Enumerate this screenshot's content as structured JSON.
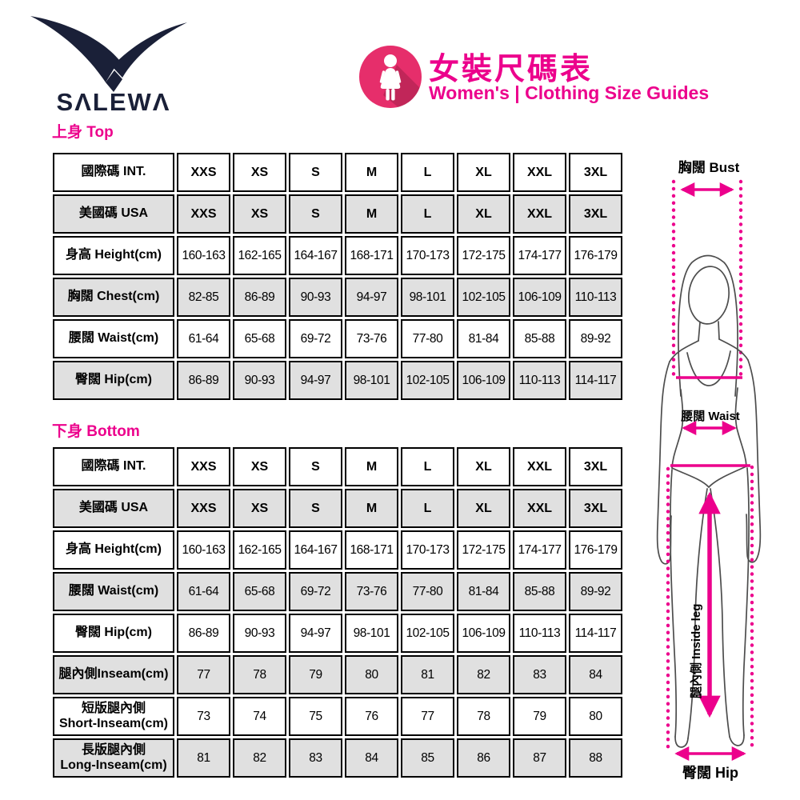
{
  "brand": {
    "name": "SALEWA",
    "logo_display": "SΛLEWΛ"
  },
  "header": {
    "title_zh": "女裝尺碼表",
    "title_en": "Women's | Clothing Size Guides",
    "icon": "woman-icon"
  },
  "colors": {
    "accent_pink": "#EC008C",
    "icon_circle_pink": "#E62E6B",
    "logo_navy": "#1A2038",
    "row_alt_gray": "#E0E0E0",
    "table_border": "#000000",
    "figure_outline": "#4d4d4d"
  },
  "size_columns": [
    "XXS",
    "XS",
    "S",
    "M",
    "L",
    "XL",
    "XXL",
    "3XL"
  ],
  "top_section": {
    "label": "上身 Top",
    "table": {
      "rows": [
        {
          "label": "國際碼 INT.",
          "values": [
            "XXS",
            "XS",
            "S",
            "M",
            "L",
            "XL",
            "XXL",
            "3XL"
          ]
        },
        {
          "label": "美國碼 USA",
          "values": [
            "XXS",
            "XS",
            "S",
            "M",
            "L",
            "XL",
            "XXL",
            "3XL"
          ]
        },
        {
          "label": "身高 Height(cm)",
          "values": [
            "160-163",
            "162-165",
            "164-167",
            "168-171",
            "170-173",
            "172-175",
            "174-177",
            "176-179"
          ]
        },
        {
          "label": "胸闊 Chest(cm)",
          "values": [
            "82-85",
            "86-89",
            "90-93",
            "94-97",
            "98-101",
            "102-105",
            "106-109",
            "110-113"
          ]
        },
        {
          "label": "腰闊 Waist(cm)",
          "values": [
            "61-64",
            "65-68",
            "69-72",
            "73-76",
            "77-80",
            "81-84",
            "85-88",
            "89-92"
          ]
        },
        {
          "label": "臀闊 Hip(cm)",
          "values": [
            "86-89",
            "90-93",
            "94-97",
            "98-101",
            "102-105",
            "106-109",
            "110-113",
            "114-117"
          ]
        }
      ]
    }
  },
  "bottom_section": {
    "label": "下身 Bottom",
    "table": {
      "rows": [
        {
          "label": "國際碼 INT.",
          "values": [
            "XXS",
            "XS",
            "S",
            "M",
            "L",
            "XL",
            "XXL",
            "3XL"
          ]
        },
        {
          "label": "美國碼 USA",
          "values": [
            "XXS",
            "XS",
            "S",
            "M",
            "L",
            "XL",
            "XXL",
            "3XL"
          ]
        },
        {
          "label": "身高 Height(cm)",
          "values": [
            "160-163",
            "162-165",
            "164-167",
            "168-171",
            "170-173",
            "172-175",
            "174-177",
            "176-179"
          ]
        },
        {
          "label": "腰闊 Waist(cm)",
          "values": [
            "61-64",
            "65-68",
            "69-72",
            "73-76",
            "77-80",
            "81-84",
            "85-88",
            "89-92"
          ]
        },
        {
          "label": "臀闊 Hip(cm)",
          "values": [
            "86-89",
            "90-93",
            "94-97",
            "98-101",
            "102-105",
            "106-109",
            "110-113",
            "114-117"
          ]
        },
        {
          "label": "腿內側Inseam(cm)",
          "values": [
            "77",
            "78",
            "79",
            "80",
            "81",
            "82",
            "83",
            "84"
          ]
        },
        {
          "label": "短版腿內側\nShort-Inseam(cm)",
          "values": [
            "73",
            "74",
            "75",
            "76",
            "77",
            "78",
            "79",
            "80"
          ]
        },
        {
          "label": "長版腿內側\nLong-Inseam(cm)",
          "values": [
            "81",
            "82",
            "83",
            "84",
            "85",
            "86",
            "87",
            "88"
          ]
        }
      ]
    }
  },
  "diagram": {
    "bust_label": "胸闊 Bust",
    "waist_label": "腰闊 Waist",
    "hip_label": "臀闊 Hip",
    "inside_leg_label": "腿內側 Inside leg"
  }
}
